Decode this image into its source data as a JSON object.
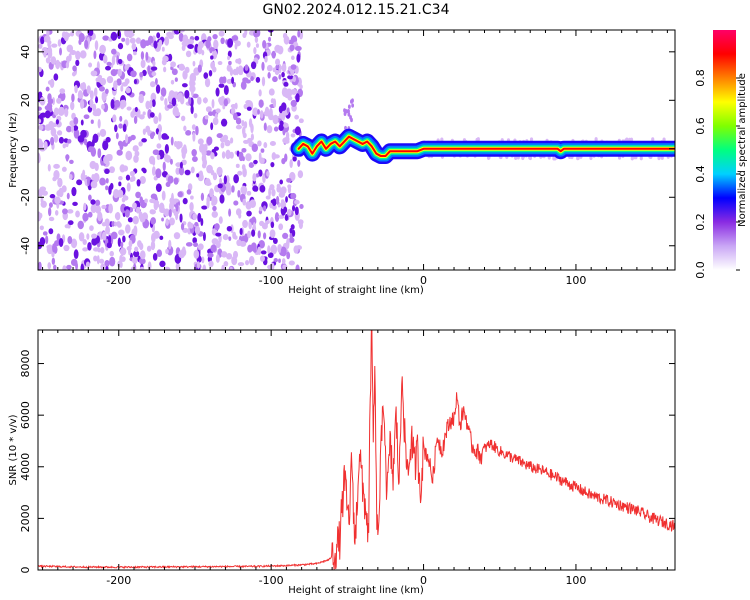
{
  "title": "GN02.2024.012.15.21.C34",
  "colors": {
    "speckle_light": "#d9b8f6",
    "speckle_mid": "#b47aef",
    "speckle_dark": "#6a11e0",
    "snr_line": "#f03030"
  },
  "chart_data": [
    {
      "type": "heatmap",
      "title": "",
      "xlabel": "Height of straight line (km)",
      "ylabel": "Frequency (Hz)",
      "xlim": [
        -253,
        165
      ],
      "ylim": [
        -50,
        49
      ],
      "xticks": [
        -200,
        -100,
        0,
        100
      ],
      "yticks": [
        -40,
        -20,
        0,
        20,
        40
      ],
      "grid": false,
      "noise_region": {
        "x_range": [
          -253,
          -80
        ],
        "y_range": [
          -50,
          49
        ],
        "amplitude": 0.1
      },
      "ridge": [
        [
          -82,
          0
        ],
        [
          -79,
          2
        ],
        [
          -76,
          1
        ],
        [
          -73,
          -2
        ],
        [
          -70,
          1
        ],
        [
          -67,
          3
        ],
        [
          -64,
          0
        ],
        [
          -61,
          2
        ],
        [
          -58,
          3
        ],
        [
          -55,
          1
        ],
        [
          -52,
          3
        ],
        [
          -49,
          5
        ],
        [
          -46,
          4
        ],
        [
          -43,
          3
        ],
        [
          -40,
          2
        ],
        [
          -37,
          3
        ],
        [
          -34,
          1
        ],
        [
          -31,
          -2
        ],
        [
          -28,
          -3
        ],
        [
          -25,
          -3
        ],
        [
          -22,
          -1
        ],
        [
          -19,
          -1
        ],
        [
          -16,
          -1
        ],
        [
          -13,
          -1
        ],
        [
          -10,
          -1
        ],
        [
          -7,
          -1
        ],
        [
          -4,
          -1
        ],
        [
          0,
          0
        ],
        [
          20,
          0
        ],
        [
          40,
          0
        ],
        [
          60,
          0
        ],
        [
          80,
          0
        ],
        [
          88,
          0
        ],
        [
          90,
          -1
        ],
        [
          92,
          0
        ],
        [
          110,
          0
        ],
        [
          130,
          0
        ],
        [
          150,
          0
        ],
        [
          165,
          0
        ]
      ],
      "ridge_amplitude": 0.9,
      "colorbar": {
        "label": "Normalized spectral amplitude",
        "range": [
          0,
          1
        ],
        "ticks": [
          "0.0",
          "0.2",
          "0.4",
          "0.6",
          "0.8"
        ],
        "colormap": [
          "#ffffff",
          "#c9a6f5",
          "#8a2be2",
          "#0000ff",
          "#00d0ff",
          "#00ff80",
          "#80ff00",
          "#ffff00",
          "#ff8000",
          "#ff0000",
          "#ff0066"
        ]
      }
    },
    {
      "type": "line",
      "title": "",
      "xlabel": "Height of straight line (km)",
      "ylabel": "SNR (10 * v/v)",
      "xlim": [
        -253,
        165
      ],
      "ylim": [
        0,
        9300
      ],
      "xticks": [
        -200,
        -100,
        0,
        100
      ],
      "yticks": [
        0,
        2000,
        4000,
        6000,
        8000
      ],
      "grid": false,
      "series": [
        {
          "color": "#f03030",
          "x": [
            -253,
            -230,
            -200,
            -170,
            -140,
            -110,
            -90,
            -80,
            -70,
            -62,
            -58,
            -55,
            -52,
            -49,
            -47,
            -45,
            -42,
            -40,
            -38,
            -36,
            -35,
            -34,
            -33,
            -32,
            -31,
            -30,
            -28,
            -26,
            -24,
            -22,
            -20,
            -18,
            -16,
            -14,
            -12,
            -10,
            -8,
            -6,
            -4,
            -2,
            0,
            3,
            6,
            9,
            12,
            15,
            18,
            21,
            22,
            24,
            26,
            28,
            30,
            32,
            35,
            38,
            40,
            44,
            50,
            60,
            70,
            80,
            90,
            100,
            110,
            120,
            130,
            140,
            150,
            160,
            165
          ],
          "y": [
            150,
            120,
            110,
            120,
            130,
            140,
            170,
            200,
            250,
            400,
            700,
            1200,
            3500,
            1800,
            4300,
            800,
            4800,
            3000,
            2500,
            1200,
            7000,
            9200,
            5000,
            7800,
            3000,
            800,
            4500,
            6600,
            2800,
            4800,
            3600,
            6000,
            3300,
            8000,
            4500,
            3800,
            5200,
            4000,
            4600,
            3200,
            4700,
            4400,
            3500,
            5200,
            4600,
            5400,
            5800,
            6000,
            6900,
            5500,
            6200,
            5900,
            5200,
            4800,
            4600,
            4400,
            4700,
            4900,
            4600,
            4300,
            4000,
            3800,
            3500,
            3200,
            2900,
            2700,
            2500,
            2300,
            2000,
            1800,
            1700
          ]
        }
      ]
    }
  ]
}
